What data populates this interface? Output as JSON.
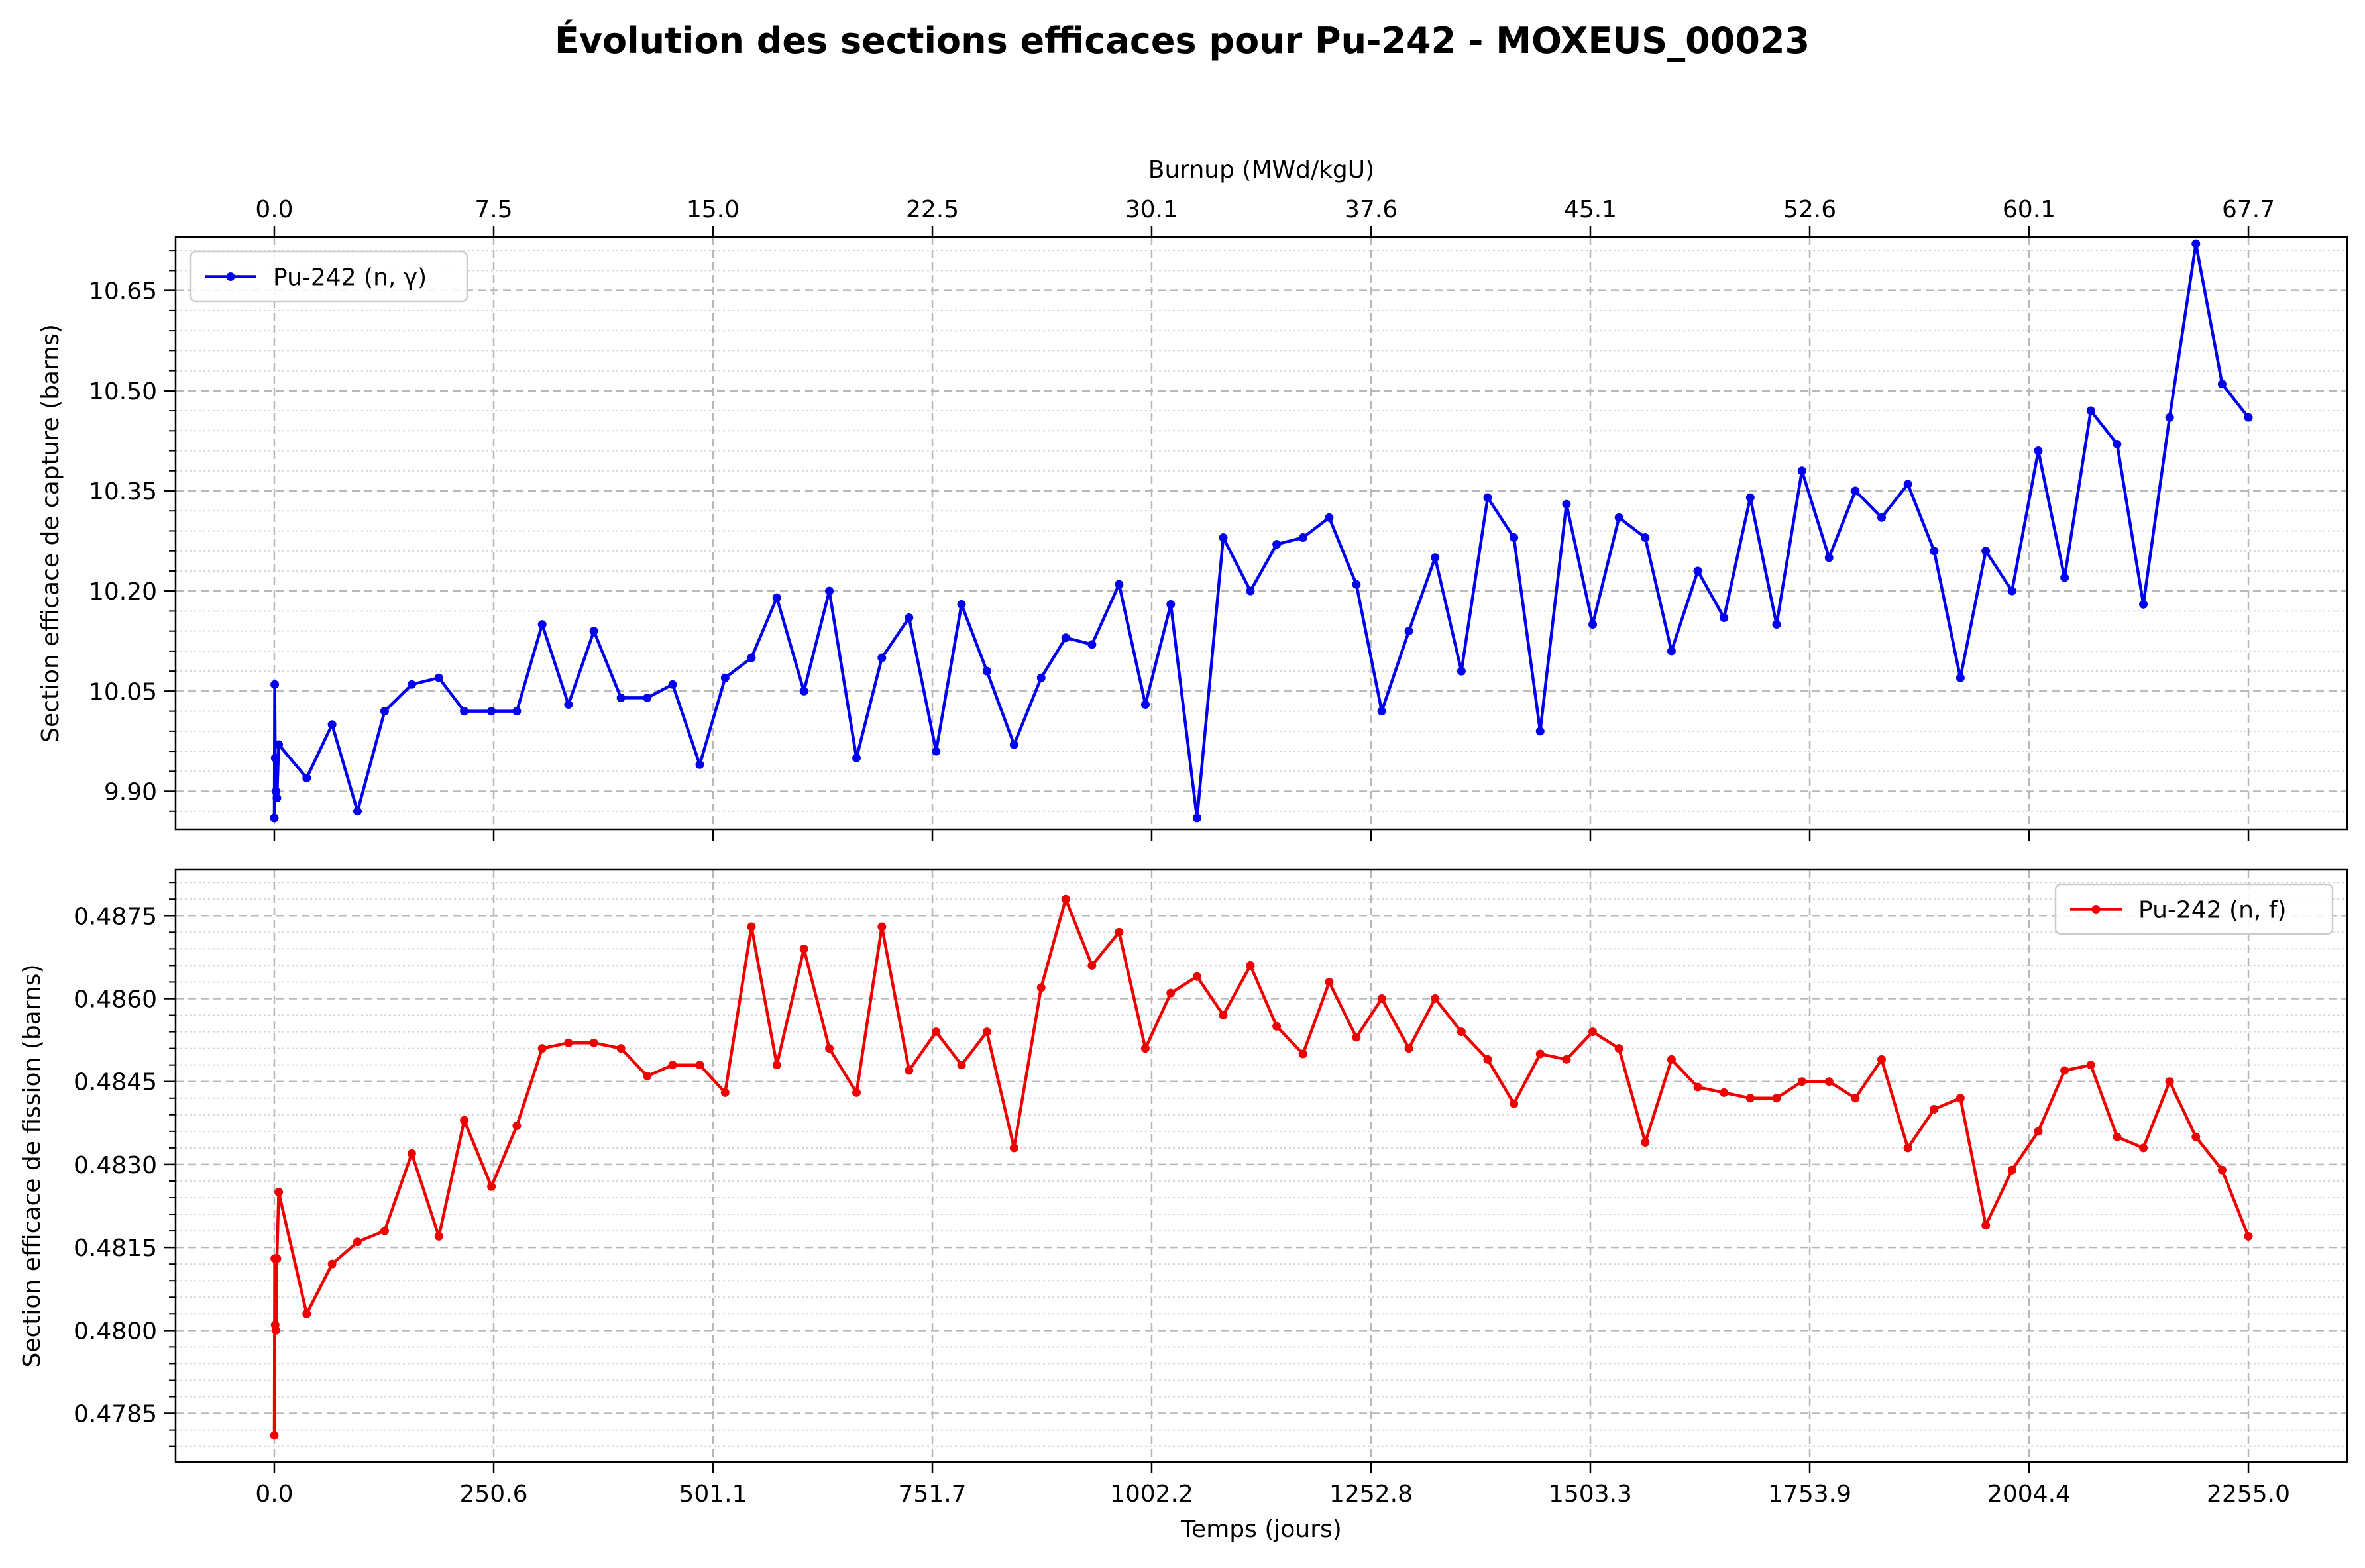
{
  "figure": {
    "title": "Évolution des sections efficaces pour Pu-242 - MOXEUS_00023"
  },
  "chart_data": [
    {
      "type": "line",
      "title": "",
      "xlabel": "",
      "ylabel": "Section efficace de capture (barns)",
      "top_axis": {
        "label": "Burnup (MWd/kgU)",
        "tick_labels": [
          "0.0",
          "7.5",
          "15.0",
          "22.5",
          "30.1",
          "37.6",
          "45.1",
          "52.6",
          "60.1",
          "67.7"
        ]
      },
      "x_tick_values": [
        0,
        250.6,
        501.1,
        751.7,
        1002.2,
        1252.8,
        1503.3,
        1753.9,
        2004.4,
        2255.0
      ],
      "xlim": [
        -112.75,
        2367.75
      ],
      "ylim": [
        9.843,
        10.73
      ],
      "yticks": [
        9.9,
        10.05,
        10.2,
        10.35,
        10.5,
        10.65
      ],
      "ytick_labels": [
        "9.90",
        "10.05",
        "10.20",
        "10.35",
        "10.50",
        "10.65"
      ],
      "grid": true,
      "legend_position": "upper-left",
      "series": [
        {
          "name": "Pu-242 (n, γ)",
          "color": "#0000ee",
          "x": [
            0,
            0.5,
            1,
            2,
            3,
            5,
            37,
            66,
            95,
            126,
            157,
            188,
            217,
            248,
            277,
            306,
            336,
            365,
            396,
            426,
            455,
            486,
            515,
            545,
            574,
            605,
            634,
            665,
            694,
            725,
            756,
            785,
            814,
            845,
            876,
            904,
            934,
            965,
            995,
            1024,
            1054,
            1084,
            1115,
            1145,
            1175,
            1205,
            1236,
            1265,
            1296,
            1326,
            1356,
            1386,
            1416,
            1446,
            1476,
            1506,
            1536,
            1566,
            1596,
            1626,
            1656,
            1686,
            1716,
            1745,
            1776,
            1806,
            1836,
            1866,
            1896,
            1926,
            1955,
            1985,
            2015,
            2045,
            2075,
            2105,
            2135,
            2165,
            2195,
            2225,
            2255
          ],
          "y": [
            9.86,
            10.06,
            9.95,
            9.9,
            9.89,
            9.97,
            9.92,
            10.0,
            9.87,
            10.02,
            10.06,
            10.07,
            10.02,
            10.02,
            10.02,
            10.15,
            10.03,
            10.14,
            10.04,
            10.04,
            10.06,
            9.94,
            10.07,
            10.1,
            10.19,
            10.05,
            10.2,
            9.95,
            10.1,
            10.16,
            9.96,
            10.18,
            10.08,
            9.97,
            10.07,
            10.13,
            10.12,
            10.21,
            10.03,
            10.18,
            9.86,
            10.28,
            10.2,
            10.27,
            10.28,
            10.31,
            10.21,
            10.02,
            10.14,
            10.25,
            10.08,
            10.34,
            10.28,
            9.99,
            10.33,
            10.15,
            10.31,
            10.28,
            10.11,
            10.23,
            10.16,
            10.34,
            10.15,
            10.38,
            10.25,
            10.35,
            10.31,
            10.36,
            10.26,
            10.07,
            10.26,
            10.2,
            10.41,
            10.22,
            10.47,
            10.42,
            10.18,
            10.46,
            10.72,
            10.51,
            10.46
          ]
        }
      ]
    },
    {
      "type": "line",
      "title": "",
      "xlabel": "Temps (jours)",
      "ylabel": "Section efficace de fission (barns)",
      "x_tick_values": [
        0,
        250.6,
        501.1,
        751.7,
        1002.2,
        1252.8,
        1503.3,
        1753.9,
        2004.4,
        2255.0
      ],
      "x_tick_labels": [
        "0.0",
        "250.6",
        "501.1",
        "751.7",
        "1002.2",
        "1252.8",
        "1503.3",
        "1753.9",
        "2004.4",
        "2255.0"
      ],
      "xlim": [
        -112.75,
        2367.75
      ],
      "ylim": [
        0.47762,
        0.48833
      ],
      "yticks": [
        0.4785,
        0.48,
        0.4815,
        0.483,
        0.4845,
        0.486,
        0.4875
      ],
      "ytick_labels": [
        "0.4785",
        "0.4800",
        "0.4815",
        "0.4830",
        "0.4845",
        "0.4860",
        "0.4875"
      ],
      "grid": true,
      "legend_position": "upper-right",
      "series": [
        {
          "name": "Pu-242 (n, f)",
          "color": "#ee0000",
          "x": [
            0,
            0.5,
            1,
            2,
            3,
            5,
            37,
            66,
            95,
            126,
            157,
            188,
            217,
            248,
            277,
            306,
            336,
            365,
            396,
            426,
            455,
            486,
            515,
            545,
            574,
            605,
            634,
            665,
            694,
            725,
            756,
            785,
            814,
            845,
            876,
            904,
            934,
            965,
            995,
            1024,
            1054,
            1084,
            1115,
            1145,
            1175,
            1205,
            1236,
            1265,
            1296,
            1326,
            1356,
            1386,
            1416,
            1446,
            1476,
            1506,
            1536,
            1566,
            1596,
            1626,
            1656,
            1686,
            1716,
            1745,
            1776,
            1806,
            1836,
            1866,
            1896,
            1926,
            1955,
            1985,
            2015,
            2045,
            2075,
            2105,
            2135,
            2165,
            2195,
            2225,
            2255
          ],
          "y": [
            0.4781,
            0.4813,
            0.4801,
            0.48,
            0.4813,
            0.4825,
            0.4803,
            0.4812,
            0.4816,
            0.4818,
            0.4832,
            0.4817,
            0.4838,
            0.4826,
            0.4837,
            0.4851,
            0.4852,
            0.4852,
            0.4851,
            0.4846,
            0.4848,
            0.4848,
            0.4843,
            0.4873,
            0.4848,
            0.4869,
            0.4851,
            0.4843,
            0.4873,
            0.4847,
            0.4854,
            0.4848,
            0.4854,
            0.4833,
            0.4862,
            0.4878,
            0.4866,
            0.4872,
            0.4851,
            0.4861,
            0.4864,
            0.4857,
            0.4866,
            0.4855,
            0.485,
            0.4863,
            0.4853,
            0.486,
            0.4851,
            0.486,
            0.4854,
            0.4849,
            0.4841,
            0.485,
            0.4849,
            0.4854,
            0.4851,
            0.4834,
            0.4849,
            0.4844,
            0.4843,
            0.4842,
            0.4842,
            0.4845,
            0.4845,
            0.4842,
            0.4849,
            0.4833,
            0.484,
            0.4842,
            0.4819,
            0.4829,
            0.4836,
            0.4847,
            0.4848,
            0.4835,
            0.4833,
            0.4845,
            0.4835,
            0.4829,
            0.4817
          ]
        }
      ]
    }
  ]
}
